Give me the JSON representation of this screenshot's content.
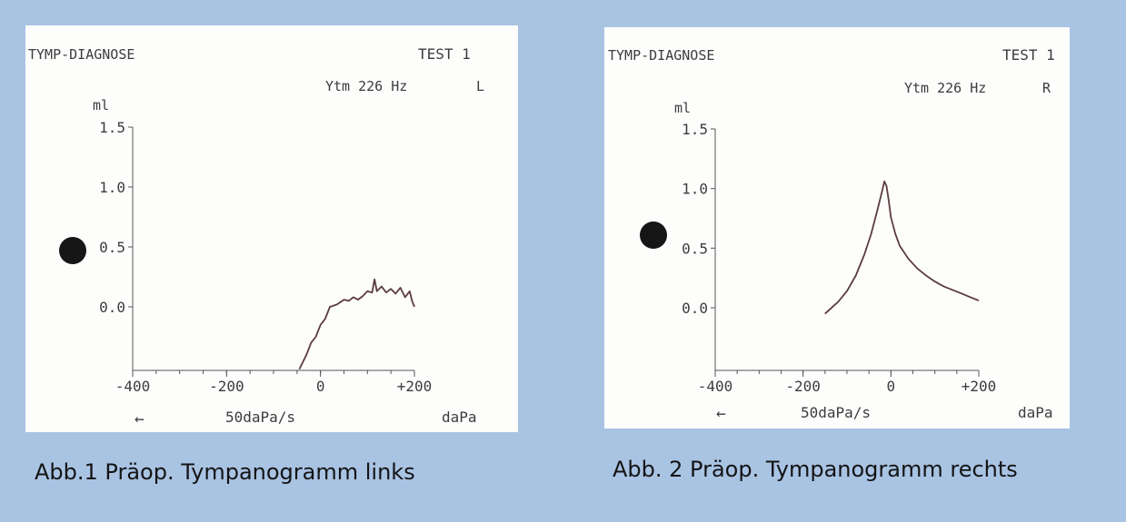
{
  "charts": [
    {
      "header": {
        "title": "TYMP-DIAGNOSE",
        "test": "TEST 1",
        "freq": "Ytm 226 Hz",
        "ear": "L"
      },
      "ylabel": "ml",
      "xlabel": "daPa",
      "rate": "50daPa/s",
      "arrow": "←",
      "caption": "Abb.1 Präop. Tympanogramm links",
      "marker_color": "#161616",
      "line_color": "#5a3c40"
    },
    {
      "header": {
        "title": "TYMP-DIAGNOSE",
        "test": "TEST 1",
        "freq": "Ytm 226 Hz",
        "ear": "R"
      },
      "ylabel": "ml",
      "xlabel": "daPa",
      "rate": "50daPa/s",
      "arrow": "←",
      "caption": "Abb. 2 Präop. Tympanogramm rechts",
      "marker_color": "#161616",
      "line_color": "#5a3c40"
    }
  ],
  "chart_data": [
    {
      "type": "line",
      "title": "TYMP-DIAGNOSE",
      "xlabel": "daPa",
      "ylabel": "ml",
      "xlim": [
        -400,
        200
      ],
      "ylim": [
        -0.5,
        1.5
      ],
      "xticks": [
        -400,
        -200,
        0,
        200
      ],
      "xtick_labels": [
        "-400",
        "-200",
        "0",
        "+200"
      ],
      "yticks": [
        0.0,
        0.5,
        1.0,
        1.5
      ],
      "ytick_labels": [
        "0.0",
        "0.5",
        "1.0",
        "1.5"
      ],
      "series": [
        {
          "x": [
            -45,
            -30,
            -20,
            -10,
            0,
            10,
            20,
            35,
            50,
            60,
            70,
            80,
            90,
            100,
            110,
            115,
            120,
            130,
            140,
            150,
            160,
            170,
            180,
            190,
            195,
            200
          ],
          "y": [
            -0.52,
            -0.4,
            -0.3,
            -0.25,
            -0.15,
            -0.1,
            0.0,
            0.02,
            0.06,
            0.05,
            0.08,
            0.06,
            0.09,
            0.13,
            0.12,
            0.23,
            0.13,
            0.17,
            0.12,
            0.15,
            0.11,
            0.16,
            0.08,
            0.13,
            0.05,
            0.0
          ]
        }
      ]
    },
    {
      "type": "line",
      "title": "TYMP-DIAGNOSE",
      "xlabel": "daPa",
      "ylabel": "ml",
      "xlim": [
        -400,
        200
      ],
      "ylim": [
        -0.5,
        1.5
      ],
      "xticks": [
        -400,
        -200,
        0,
        200
      ],
      "xtick_labels": [
        "-400",
        "-200",
        "0",
        "+200"
      ],
      "yticks": [
        0.0,
        0.5,
        1.0,
        1.5
      ],
      "ytick_labels": [
        "0.0",
        "0.5",
        "1.0",
        "1.5"
      ],
      "series": [
        {
          "x": [
            -150,
            -120,
            -100,
            -80,
            -60,
            -45,
            -30,
            -20,
            -15,
            -10,
            -5,
            0,
            10,
            20,
            40,
            60,
            80,
            100,
            120,
            140,
            160,
            180,
            200
          ],
          "y": [
            -0.05,
            0.05,
            0.14,
            0.27,
            0.45,
            0.62,
            0.83,
            0.98,
            1.06,
            1.02,
            0.9,
            0.76,
            0.62,
            0.52,
            0.41,
            0.33,
            0.27,
            0.22,
            0.18,
            0.15,
            0.12,
            0.09,
            0.06
          ]
        }
      ]
    }
  ]
}
